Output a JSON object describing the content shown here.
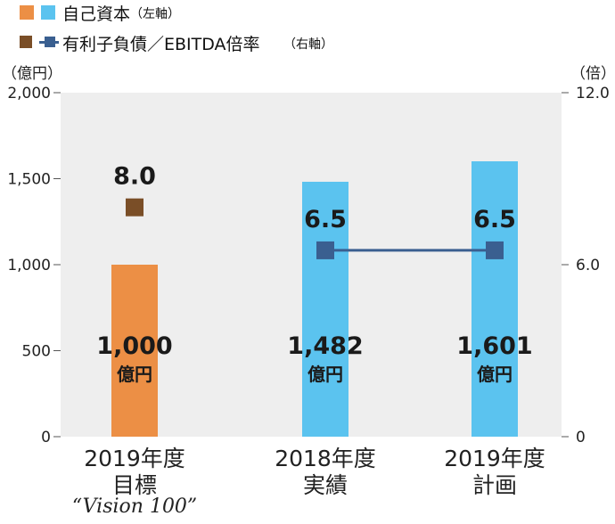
{
  "legend": {
    "equity_label": "自己資本",
    "equity_axis": "（左軸）",
    "ratio_label": "有利子負債／EBITDA倍率",
    "ratio_axis": "（右軸）"
  },
  "axes": {
    "left_unit": "（億円）",
    "right_unit": "（倍）"
  },
  "colors": {
    "target_bar": "#EC8F45",
    "actual_bar": "#5BC3EF",
    "ratio_marker": "#7A4E27",
    "ratio_line": "#3A5F90",
    "plot_bg": "#EEEEEE"
  },
  "categories_text": [
    {
      "line1": "2019年度",
      "line2": "目標",
      "line3": "“Vision 100”"
    },
    {
      "line1": "2018年度",
      "line2": "実績",
      "line3": ""
    },
    {
      "line1": "2019年度",
      "line2": "計画",
      "line3": ""
    }
  ],
  "chart_data": {
    "type": "bar",
    "categories": [
      "2019年度 目標",
      "2018年度 実績",
      "2019年度 計画"
    ],
    "series": [
      {
        "name": "自己資本",
        "axis": "left",
        "values": [
          1000,
          1482,
          1601
        ],
        "labels": [
          "1,000\n億円",
          "1,482\n億円",
          "1,601\n億円"
        ]
      },
      {
        "name": "有利子負債／EBITDA倍率",
        "axis": "right",
        "values": [
          8.0,
          6.5,
          6.5
        ],
        "labels": [
          "8.0",
          "6.5",
          "6.5"
        ],
        "connected": [
          false,
          true,
          true
        ]
      }
    ],
    "left_axis": {
      "unit": "億円",
      "ylim": [
        0,
        2000
      ],
      "ticks": [
        "0",
        "500",
        "1,000",
        "1,500",
        "2,000"
      ]
    },
    "right_axis": {
      "unit": "倍",
      "ylim": [
        0,
        12
      ],
      "ticks": [
        "0",
        "6.0",
        "12.0"
      ]
    },
    "grid": false,
    "legend": "top-left"
  }
}
